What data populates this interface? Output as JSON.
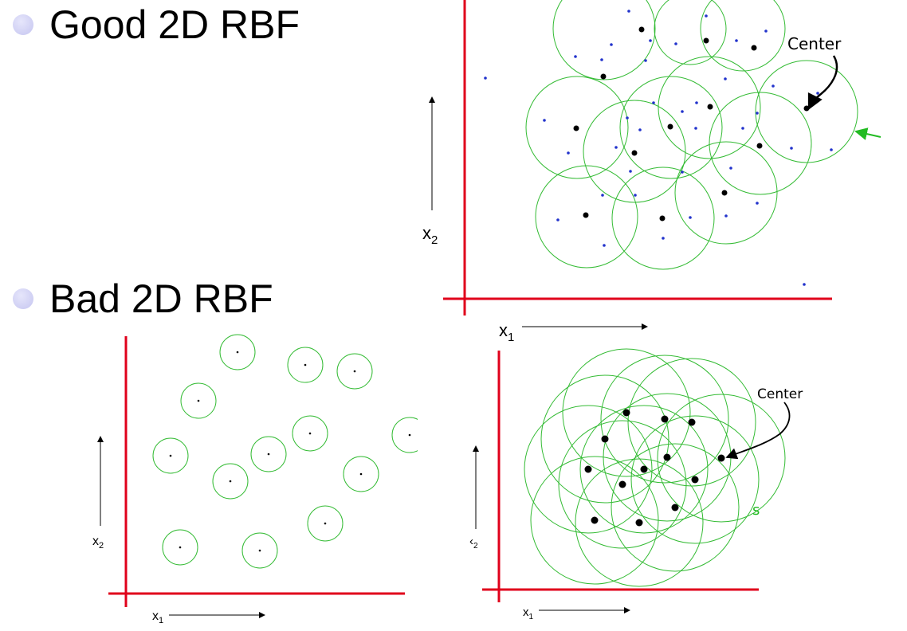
{
  "slide": {
    "good_heading": "Good 2D RBF",
    "bad_heading": "Bad 2D RBF"
  },
  "plots": {
    "top_right": {
      "center_label": "Center",
      "x_label": "x",
      "x_sub": "1",
      "y_label": "x",
      "y_sub": "2"
    },
    "bottom_left": {
      "x_label": "x",
      "x_sub": "1",
      "y_label": "x",
      "y_sub": "2"
    },
    "bottom_right": {
      "center_label": "Center",
      "x_label": "x",
      "x_sub": "1",
      "y_label": "‹",
      "y_sub": "2",
      "annotation": "s"
    }
  },
  "colors": {
    "axis": "#e0001b",
    "circle": "#33bb33",
    "point": "#2233cc",
    "center": "#000000"
  }
}
